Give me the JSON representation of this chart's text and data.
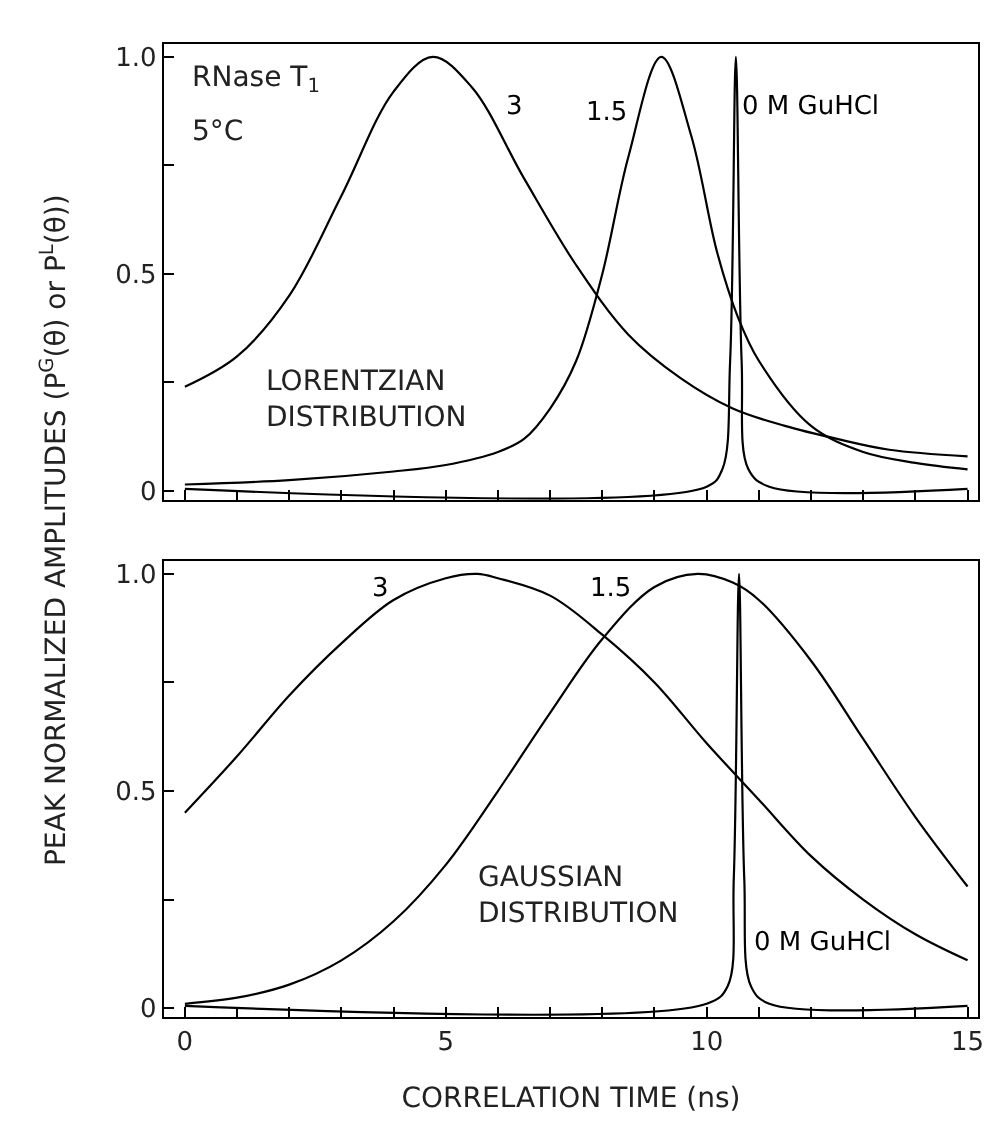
{
  "chart_data": [
    {
      "type": "line",
      "ylabel": "PEAK NORMALIZED AMPLITUDES (P$^{G}$(θ) or P$^{L}$(θ))",
      "xlim": [
        -0.4,
        15.2
      ],
      "ylim": [
        -0.02,
        1.03
      ],
      "xticks": [
        {
          "value": 0,
          "label": null
        },
        {
          "value": 1,
          "label": null
        },
        {
          "value": 2,
          "label": null
        },
        {
          "value": 3,
          "label": null
        },
        {
          "value": 4,
          "label": null
        },
        {
          "value": 5,
          "label": null
        },
        {
          "value": 6,
          "label": null
        },
        {
          "value": 7,
          "label": null
        },
        {
          "value": 8,
          "label": null
        },
        {
          "value": 9,
          "label": null
        },
        {
          "value": 10,
          "label": null
        },
        {
          "value": 11,
          "label": null
        },
        {
          "value": 12,
          "label": null
        },
        {
          "value": 13,
          "label": null
        },
        {
          "value": 14,
          "label": null
        },
        {
          "value": 15,
          "label": null
        }
      ],
      "yticks": [
        0,
        {
          "value": 0.25,
          "label": null
        },
        0.5,
        {
          "value": 0.75,
          "label": null
        },
        {
          "value": 1.0,
          "label": "1.0"
        }
      ],
      "tick_labels": "y",
      "series": [
        {
          "name": "3",
          "color": "#000000",
          "x": [
            0,
            1,
            2,
            3,
            4,
            4.75,
            5.5,
            6.5,
            7.5,
            8.5,
            9.5,
            10.5,
            11.5,
            12.5,
            13.5,
            15
          ],
          "values": [
            0.24,
            0.31,
            0.45,
            0.68,
            0.92,
            1.0,
            0.93,
            0.72,
            0.52,
            0.36,
            0.26,
            0.19,
            0.15,
            0.12,
            0.095,
            0.08
          ]
        },
        {
          "name": "1.5",
          "color": "#000000",
          "x": [
            0,
            2,
            4,
            5,
            6,
            6.5,
            7,
            7.5,
            8,
            8.5,
            9.13,
            9.7,
            10.2,
            10.6,
            11,
            12,
            13,
            14,
            15
          ],
          "values": [
            0.015,
            0.025,
            0.045,
            0.06,
            0.09,
            0.12,
            0.19,
            0.3,
            0.5,
            0.77,
            1.0,
            0.82,
            0.55,
            0.4,
            0.3,
            0.15,
            0.09,
            0.065,
            0.05
          ]
        },
        {
          "name": "0 M GuHCl",
          "color": "#000000",
          "x": [
            0,
            10,
            10.3,
            10.45,
            10.56,
            10.67,
            10.8,
            11.2,
            15
          ],
          "values": [
            0.005,
            0.01,
            0.05,
            0.3,
            1.0,
            0.3,
            0.05,
            0.01,
            0.005
          ]
        }
      ],
      "annotations": [
        "RNase T$_{1}$",
        "5°C",
        "LORENTZIAN\nDISTRIBUTION"
      ]
    },
    {
      "type": "line",
      "xlabel": "CORRELATION TIME (ns)",
      "xlim": [
        -0.4,
        15.2
      ],
      "ylim": [
        -0.02,
        1.03
      ],
      "xticks": [
        0,
        {
          "value": 1,
          "label": null
        },
        {
          "value": 2,
          "label": null
        },
        {
          "value": 3,
          "label": null
        },
        {
          "value": 4,
          "label": null
        },
        5,
        {
          "value": 6,
          "label": null
        },
        {
          "value": 7,
          "label": null
        },
        {
          "value": 8,
          "label": null
        },
        {
          "value": 9,
          "label": null
        },
        10,
        {
          "value": 11,
          "label": null
        },
        {
          "value": 12,
          "label": null
        },
        {
          "value": 13,
          "label": null
        },
        {
          "value": 14,
          "label": null
        },
        15
      ],
      "yticks": [
        0,
        {
          "value": 0.25,
          "label": null
        },
        0.5,
        {
          "value": 0.75,
          "label": null
        },
        {
          "value": 1.0,
          "label": "1.0"
        }
      ],
      "series": [
        {
          "name": "3",
          "color": "#000000",
          "x": [
            0,
            1,
            2,
            3,
            4,
            5,
            5.6,
            6,
            7,
            8,
            9,
            10,
            11,
            12,
            13,
            14,
            15
          ],
          "values": [
            0.45,
            0.58,
            0.72,
            0.84,
            0.94,
            0.99,
            1.0,
            0.99,
            0.95,
            0.86,
            0.75,
            0.61,
            0.48,
            0.35,
            0.25,
            0.17,
            0.11
          ]
        },
        {
          "name": "1.5",
          "color": "#000000",
          "x": [
            0,
            1,
            2,
            3,
            4,
            5,
            6,
            7,
            8,
            9,
            9.83,
            10.5,
            11,
            12,
            13,
            14,
            15
          ],
          "values": [
            0.01,
            0.024,
            0.054,
            0.11,
            0.2,
            0.33,
            0.5,
            0.68,
            0.85,
            0.97,
            1.0,
            0.98,
            0.94,
            0.8,
            0.62,
            0.44,
            0.28
          ]
        },
        {
          "name": "0 M GuHCl",
          "color": "#000000",
          "x": [
            0,
            10,
            10.4,
            10.52,
            10.62,
            10.72,
            10.85,
            11.2,
            15
          ],
          "values": [
            0.005,
            0.01,
            0.05,
            0.3,
            1.0,
            0.3,
            0.05,
            0.01,
            0.005
          ]
        }
      ],
      "annotations": [
        "GAUSSIAN\nDISTRIBUTION"
      ]
    }
  ]
}
